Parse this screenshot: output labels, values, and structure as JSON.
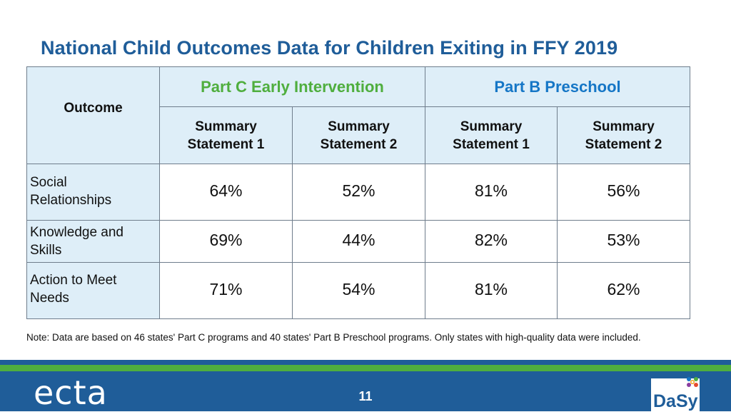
{
  "title": "National Child Outcomes Data for Children Exiting in FFY 2019",
  "table": {
    "outcome_header": "Outcome",
    "groups": [
      {
        "label": "Part C Early Intervention",
        "color": "#4fae3e"
      },
      {
        "label": "Part B Preschool",
        "color": "#1576c6"
      }
    ],
    "subheaders": [
      [
        "Summary",
        "Statement 1"
      ],
      [
        "Summary",
        "Statement 2"
      ],
      [
        "Summary",
        "Statement 1"
      ],
      [
        "Summary",
        "Statement 2"
      ]
    ],
    "rows": [
      {
        "label": [
          "Social",
          "Relationships"
        ],
        "values": [
          "64%",
          "52%",
          "81%",
          "56%"
        ]
      },
      {
        "label": [
          "Knowledge and",
          "Skills"
        ],
        "values": [
          "69%",
          "44%",
          "82%",
          "53%"
        ]
      },
      {
        "label": [
          "Action to Meet",
          "Needs"
        ],
        "values": [
          "71%",
          "54%",
          "81%",
          "62%"
        ]
      }
    ]
  },
  "note": "Note: Data are based on 46 states' Part C programs and 40 states' Part B Preschool programs. Only states with high-quality data were included.",
  "footer": {
    "left_logo_text": "ecta",
    "page_number": "11",
    "right_logo_text": "DaSy"
  },
  "colors": {
    "title": "#1f5d99",
    "header_fill": "#deeef8",
    "footer": "#1f5d99",
    "footer_stripe": "#4fae3e"
  }
}
